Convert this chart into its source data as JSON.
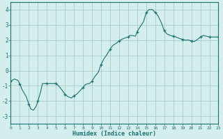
{
  "x": [
    0,
    0.4,
    0.8,
    1.0,
    1.3,
    1.7,
    2.0,
    2.2,
    2.5,
    2.8,
    3.0,
    3.3,
    3.5,
    4.0,
    4.3,
    4.7,
    5.0,
    5.3,
    5.7,
    6.0,
    6.3,
    6.7,
    7.0,
    7.3,
    7.7,
    8.0,
    8.3,
    8.7,
    9.0,
    9.3,
    9.7,
    10.0,
    10.3,
    10.7,
    11.0,
    11.3,
    11.7,
    12.0,
    12.3,
    12.7,
    13.0,
    13.2,
    13.5,
    13.8,
    14.0,
    14.3,
    14.7,
    15.0,
    15.3,
    15.7,
    16.0,
    16.3,
    16.7,
    17.0,
    17.3,
    17.7,
    18.0,
    18.3,
    18.7,
    19.0,
    19.3,
    19.7,
    20.0,
    20.3,
    20.7,
    21.0,
    21.3,
    21.7,
    22.0,
    22.3,
    22.7,
    23.0
  ],
  "y": [
    -0.7,
    -0.55,
    -0.65,
    -0.9,
    -1.3,
    -1.7,
    -2.2,
    -2.5,
    -2.6,
    -2.35,
    -2.0,
    -1.4,
    -0.85,
    -0.85,
    -0.85,
    -0.85,
    -0.85,
    -1.0,
    -1.3,
    -1.55,
    -1.7,
    -1.8,
    -1.65,
    -1.55,
    -1.3,
    -1.1,
    -0.9,
    -0.85,
    -0.7,
    -0.4,
    -0.1,
    0.4,
    0.75,
    1.1,
    1.4,
    1.65,
    1.8,
    1.95,
    2.05,
    2.15,
    2.2,
    2.3,
    2.3,
    2.25,
    2.55,
    2.85,
    3.2,
    3.8,
    4.0,
    4.0,
    3.8,
    3.6,
    3.1,
    2.6,
    2.4,
    2.3,
    2.25,
    2.2,
    2.1,
    2.05,
    2.0,
    2.0,
    1.95,
    1.9,
    2.05,
    2.2,
    2.3,
    2.25,
    2.2,
    2.2,
    2.2,
    2.2
  ],
  "marked_x": [
    0,
    1,
    2,
    3,
    4,
    5,
    6,
    7,
    8,
    9,
    10,
    11,
    12,
    13,
    14,
    15,
    16,
    17,
    18,
    19,
    20,
    21,
    22,
    23
  ],
  "marked_y": [
    -0.7,
    -0.9,
    -2.2,
    -2.0,
    -0.85,
    -0.85,
    -1.55,
    -1.65,
    -1.1,
    -0.7,
    0.4,
    1.4,
    1.95,
    2.2,
    2.55,
    3.8,
    3.8,
    2.6,
    2.25,
    2.05,
    1.95,
    2.2,
    2.2,
    2.2
  ],
  "line_color": "#1a7070",
  "marker_color": "#1a7070",
  "bg_color": "#d4eeee",
  "grid_color": "#aacccc",
  "axis_color": "#1a7070",
  "xlabel": "Humidex (Indice chaleur)",
  "xlim": [
    0,
    23
  ],
  "ylim": [
    -3.5,
    4.5
  ],
  "yticks": [
    -3,
    -2,
    -1,
    0,
    1,
    2,
    3,
    4
  ],
  "xticks": [
    0,
    1,
    2,
    3,
    4,
    5,
    6,
    7,
    8,
    9,
    10,
    11,
    12,
    13,
    14,
    15,
    16,
    17,
    18,
    19,
    20,
    21,
    22,
    23
  ]
}
